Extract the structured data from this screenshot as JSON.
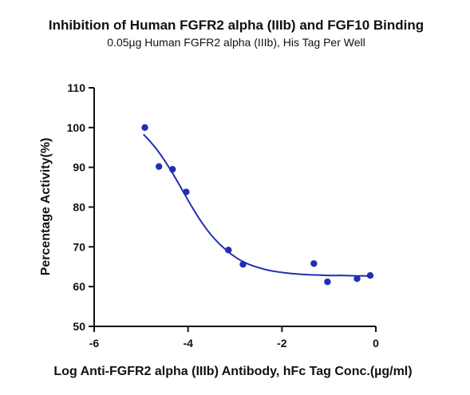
{
  "chart_data": {
    "type": "scatter",
    "title": "Inhibition of Human FGFR2 alpha (IIIb) and FGF10 Binding",
    "subtitle": "0.05µg Human FGFR2 alpha (IIIb), His Tag Per Well",
    "xlabel": "Log Anti-FGFR2 alpha (IIIb) Antibody, hFc Tag Conc.(µg/ml)",
    "ylabel": "Percentage Activity(%)",
    "xlim": [
      -6,
      0
    ],
    "ylim": [
      50,
      110
    ],
    "xticks": [
      -6,
      -4,
      -2,
      0
    ],
    "yticks": [
      50,
      60,
      70,
      80,
      90,
      100,
      110
    ],
    "grid": false,
    "colors": {
      "series": "#1f2fb0",
      "axis": "#111111"
    },
    "points": {
      "x": [
        -4.92,
        -4.62,
        -4.33,
        -4.04,
        -3.14,
        -2.83,
        -1.32,
        -1.03,
        -0.4,
        -0.12
      ],
      "y": [
        100.0,
        90.2,
        89.5,
        83.8,
        69.2,
        65.6,
        65.8,
        61.2,
        62.0,
        62.8
      ]
    },
    "fit_curve": {
      "x": [
        -4.95,
        -4.7,
        -4.45,
        -4.2,
        -3.95,
        -3.7,
        -3.45,
        -3.2,
        -2.95,
        -2.7,
        -2.45,
        -2.2,
        -1.95,
        -1.7,
        -1.45,
        -1.2,
        -0.95,
        -0.7,
        -0.45,
        -0.15
      ],
      "y": [
        98.3,
        95.0,
        90.8,
        85.9,
        80.7,
        76.0,
        72.2,
        69.3,
        67.1,
        65.6,
        64.6,
        63.9,
        63.5,
        63.2,
        63.0,
        62.9,
        62.8,
        62.8,
        62.7,
        62.7
      ]
    }
  }
}
